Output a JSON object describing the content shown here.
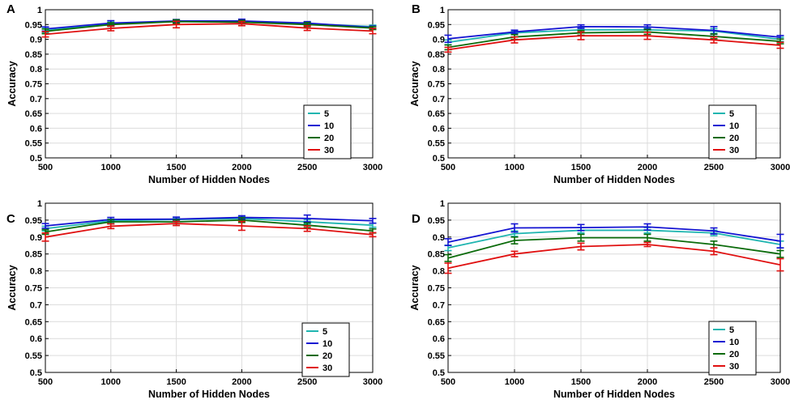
{
  "colors": {
    "s5": "#1fb5b0",
    "s10": "#1414d2",
    "s20": "#0b6b0b",
    "s30": "#e01010",
    "grid": "#dcdcdc",
    "axis": "#000000"
  },
  "chart_data": [
    {
      "panel": "A",
      "type": "line",
      "x": [
        500,
        1000,
        1500,
        2000,
        2500,
        3000
      ],
      "xlabel": "Number of Hidden Nodes",
      "ylabel": "Accuracy",
      "xticks": [
        "500",
        "1000",
        "1500",
        "2000",
        "2500",
        "3000"
      ],
      "yticks": [
        "0.5",
        "0.55",
        "0.6",
        "0.65",
        "0.7",
        "0.75",
        "0.8",
        "0.85",
        "0.9",
        "0.95",
        "1"
      ],
      "ylim": [
        0.5,
        1
      ],
      "xlim": [
        500,
        3000
      ],
      "grid": true,
      "legend_position": "lower-right",
      "series": [
        {
          "name": "5",
          "color": "s5",
          "values": [
            0.93,
            0.952,
            0.96,
            0.958,
            0.953,
            0.943
          ],
          "errors": [
            0.007,
            0.006,
            0.005,
            0.005,
            0.005,
            0.005
          ]
        },
        {
          "name": "10",
          "color": "s10",
          "values": [
            0.935,
            0.955,
            0.962,
            0.962,
            0.955,
            0.94
          ],
          "errors": [
            0.007,
            0.008,
            0.005,
            0.006,
            0.005,
            0.005
          ]
        },
        {
          "name": "20",
          "color": "s20",
          "values": [
            0.927,
            0.95,
            0.96,
            0.958,
            0.95,
            0.938
          ],
          "errors": [
            0.008,
            0.006,
            0.006,
            0.006,
            0.007,
            0.005
          ]
        },
        {
          "name": "30",
          "color": "s30",
          "values": [
            0.917,
            0.937,
            0.95,
            0.953,
            0.938,
            0.928
          ],
          "errors": [
            0.009,
            0.008,
            0.011,
            0.007,
            0.008,
            0.009
          ]
        }
      ]
    },
    {
      "panel": "B",
      "type": "line",
      "x": [
        500,
        1000,
        1500,
        2000,
        2500,
        3000
      ],
      "xlabel": "Number of Hidden Nodes",
      "ylabel": "Accuracy",
      "xticks": [
        "500",
        "1000",
        "1500",
        "2000",
        "2500",
        "3000"
      ],
      "yticks": [
        "0.5",
        "0.55",
        "0.6",
        "0.65",
        "0.7",
        "0.75",
        "0.8",
        "0.85",
        "0.9",
        "0.95",
        "1"
      ],
      "ylim": [
        0.5,
        1
      ],
      "xlim": [
        500,
        3000
      ],
      "grid": true,
      "legend_position": "lower-right",
      "series": [
        {
          "name": "5",
          "color": "s5",
          "values": [
            0.89,
            0.922,
            0.932,
            0.932,
            0.928,
            0.9
          ],
          "errors": [
            0.008,
            0.006,
            0.007,
            0.007,
            0.008,
            0.007
          ]
        },
        {
          "name": "10",
          "color": "s10",
          "values": [
            0.902,
            0.925,
            0.943,
            0.942,
            0.93,
            0.907
          ],
          "errors": [
            0.012,
            0.006,
            0.006,
            0.007,
            0.013,
            0.006
          ]
        },
        {
          "name": "20",
          "color": "s20",
          "values": [
            0.873,
            0.908,
            0.922,
            0.925,
            0.91,
            0.893
          ],
          "errors": [
            0.008,
            0.008,
            0.008,
            0.008,
            0.008,
            0.008
          ]
        },
        {
          "name": "30",
          "color": "s30",
          "values": [
            0.865,
            0.898,
            0.912,
            0.912,
            0.898,
            0.88
          ],
          "errors": [
            0.008,
            0.01,
            0.013,
            0.012,
            0.01,
            0.01
          ]
        }
      ]
    },
    {
      "panel": "C",
      "type": "line",
      "x": [
        500,
        1000,
        1500,
        2000,
        2500,
        3000
      ],
      "xlabel": "Number of Hidden Nodes",
      "ylabel": "Accuracy",
      "xticks": [
        "500",
        "1000",
        "1500",
        "2000",
        "2500",
        "3000"
      ],
      "yticks": [
        "0.5",
        "0.55",
        "0.6",
        "0.65",
        "0.7",
        "0.75",
        "0.8",
        "0.85",
        "0.9",
        "0.95",
        "1"
      ],
      "ylim": [
        0.5,
        1
      ],
      "xlim": [
        500,
        3000
      ],
      "grid": true,
      "legend_position": "lower-right",
      "series": [
        {
          "name": "5",
          "color": "s5",
          "values": [
            0.925,
            0.948,
            0.952,
            0.955,
            0.945,
            0.935
          ],
          "errors": [
            0.007,
            0.005,
            0.005,
            0.005,
            0.006,
            0.006
          ]
        },
        {
          "name": "10",
          "color": "s10",
          "values": [
            0.933,
            0.952,
            0.953,
            0.958,
            0.955,
            0.948
          ],
          "errors": [
            0.007,
            0.006,
            0.006,
            0.005,
            0.01,
            0.007
          ]
        },
        {
          "name": "20",
          "color": "s20",
          "values": [
            0.915,
            0.945,
            0.945,
            0.95,
            0.935,
            0.918
          ],
          "errors": [
            0.007,
            0.006,
            0.006,
            0.007,
            0.007,
            0.006
          ]
        },
        {
          "name": "30",
          "color": "s30",
          "values": [
            0.9,
            0.932,
            0.94,
            0.933,
            0.925,
            0.907
          ],
          "errors": [
            0.012,
            0.007,
            0.006,
            0.013,
            0.008,
            0.006
          ]
        }
      ]
    },
    {
      "panel": "D",
      "type": "line",
      "x": [
        500,
        1000,
        1500,
        2000,
        2500,
        3000
      ],
      "xlabel": "Number of Hidden Nodes",
      "ylabel": "Accuracy",
      "xticks": [
        "500",
        "1000",
        "1500",
        "2000",
        "2500",
        "3000"
      ],
      "yticks": [
        "0.5",
        "0.55",
        "0.6",
        "0.65",
        "0.7",
        "0.75",
        "0.8",
        "0.85",
        "0.9",
        "0.95",
        "1"
      ],
      "ylim": [
        0.5,
        1
      ],
      "xlim": [
        500,
        3000
      ],
      "grid": true,
      "legend_position": "lower-right",
      "series": [
        {
          "name": "5",
          "color": "s5",
          "values": [
            0.868,
            0.91,
            0.92,
            0.92,
            0.912,
            0.878
          ],
          "errors": [
            0.008,
            0.008,
            0.008,
            0.008,
            0.008,
            0.01
          ]
        },
        {
          "name": "10",
          "color": "s10",
          "values": [
            0.885,
            0.927,
            0.928,
            0.93,
            0.918,
            0.888
          ],
          "errors": [
            0.01,
            0.012,
            0.009,
            0.009,
            0.009,
            0.02
          ]
        },
        {
          "name": "20",
          "color": "s20",
          "values": [
            0.838,
            0.89,
            0.898,
            0.898,
            0.878,
            0.85
          ],
          "errors": [
            0.01,
            0.01,
            0.01,
            0.01,
            0.01,
            0.01
          ]
        },
        {
          "name": "30",
          "color": "s30",
          "values": [
            0.808,
            0.85,
            0.872,
            0.878,
            0.858,
            0.818
          ],
          "errors": [
            0.015,
            0.008,
            0.01,
            0.006,
            0.01,
            0.018
          ]
        }
      ]
    }
  ]
}
